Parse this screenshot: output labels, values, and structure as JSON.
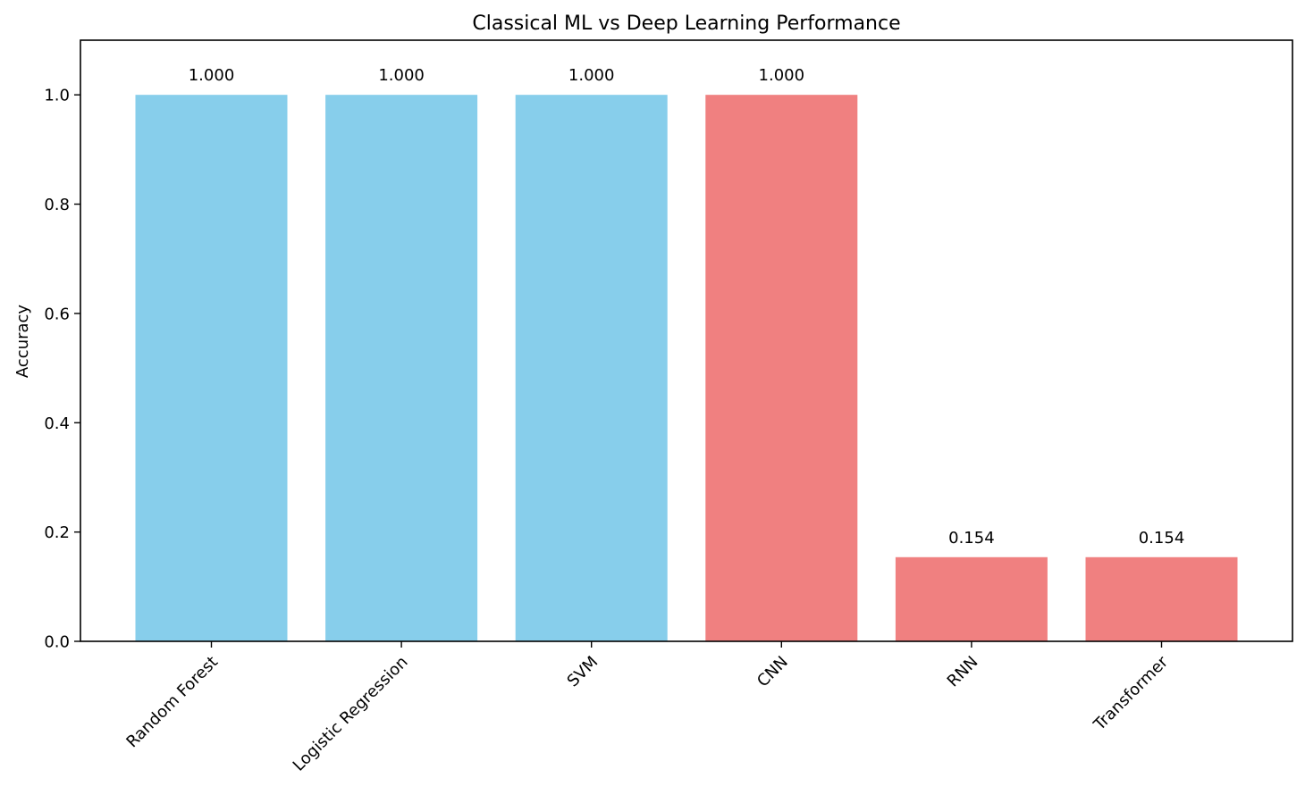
{
  "chart_data": {
    "type": "bar",
    "title": "Classical ML vs Deep Learning Performance",
    "xlabel": "",
    "ylabel": "Accuracy",
    "categories": [
      "Random Forest",
      "Logistic Regression",
      "SVM",
      "CNN",
      "RNN",
      "Transformer"
    ],
    "values": [
      1.0,
      1.0,
      1.0,
      1.0,
      0.154,
      0.154
    ],
    "value_labels": [
      "1.000",
      "1.000",
      "1.000",
      "1.000",
      "0.154",
      "0.154"
    ],
    "bar_colors": [
      "#87CEEB",
      "#87CEEB",
      "#87CEEB",
      "#F08080",
      "#F08080",
      "#F08080"
    ],
    "ylim": [
      0,
      1.1
    ],
    "yticks": [
      0.0,
      0.2,
      0.4,
      0.6,
      0.8,
      1.0
    ],
    "ytick_labels": [
      "0.0",
      "0.2",
      "0.4",
      "0.6",
      "0.8",
      "1.0"
    ],
    "xtick_rotation_deg": 45,
    "grid": false,
    "legend": "none"
  }
}
